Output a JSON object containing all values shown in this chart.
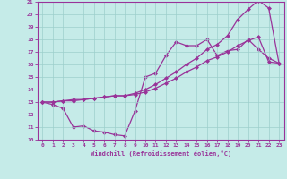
{
  "xlabel": "Windchill (Refroidissement éolien,°C)",
  "xlim": [
    -0.5,
    23.5
  ],
  "ylim": [
    10,
    21
  ],
  "xticks": [
    0,
    1,
    2,
    3,
    4,
    5,
    6,
    7,
    8,
    9,
    10,
    11,
    12,
    13,
    14,
    15,
    16,
    17,
    18,
    19,
    20,
    21,
    22,
    23
  ],
  "yticks": [
    10,
    11,
    12,
    13,
    14,
    15,
    16,
    17,
    18,
    19,
    20,
    21
  ],
  "background_color": "#c5ebe8",
  "grid_color": "#9dcfcc",
  "line_color": "#993399",
  "line1_x": [
    0,
    1,
    2,
    3,
    4,
    5,
    6,
    7,
    8,
    9,
    10,
    11,
    12,
    13,
    14,
    15,
    16,
    17,
    18,
    19,
    20,
    21,
    22,
    23
  ],
  "line1_y": [
    13.0,
    12.8,
    12.5,
    11.0,
    11.1,
    10.7,
    10.6,
    10.4,
    10.3,
    12.3,
    15.0,
    15.3,
    16.7,
    17.8,
    17.5,
    17.5,
    18.0,
    16.7,
    17.1,
    17.2,
    18.0,
    17.2,
    16.5,
    16.1
  ],
  "line2_x": [
    0,
    1,
    2,
    3,
    4,
    5,
    6,
    7,
    8,
    9,
    10,
    11,
    12,
    13,
    14,
    15,
    16,
    17,
    18,
    19,
    20,
    21,
    22,
    23
  ],
  "line2_y": [
    13.0,
    13.0,
    13.1,
    13.1,
    13.2,
    13.3,
    13.4,
    13.5,
    13.5,
    13.6,
    13.8,
    14.1,
    14.5,
    14.9,
    15.4,
    15.8,
    16.3,
    16.6,
    17.0,
    17.5,
    17.9,
    18.2,
    16.2,
    16.1
  ],
  "line3_x": [
    0,
    1,
    2,
    3,
    4,
    5,
    6,
    7,
    8,
    9,
    10,
    11,
    12,
    13,
    14,
    15,
    16,
    17,
    18,
    19,
    20,
    21,
    22,
    23
  ],
  "line3_y": [
    13.0,
    13.0,
    13.1,
    13.2,
    13.2,
    13.3,
    13.4,
    13.5,
    13.5,
    13.7,
    14.0,
    14.4,
    14.9,
    15.4,
    16.0,
    16.5,
    17.2,
    17.6,
    18.3,
    19.6,
    20.4,
    21.1,
    20.5,
    16.1
  ]
}
